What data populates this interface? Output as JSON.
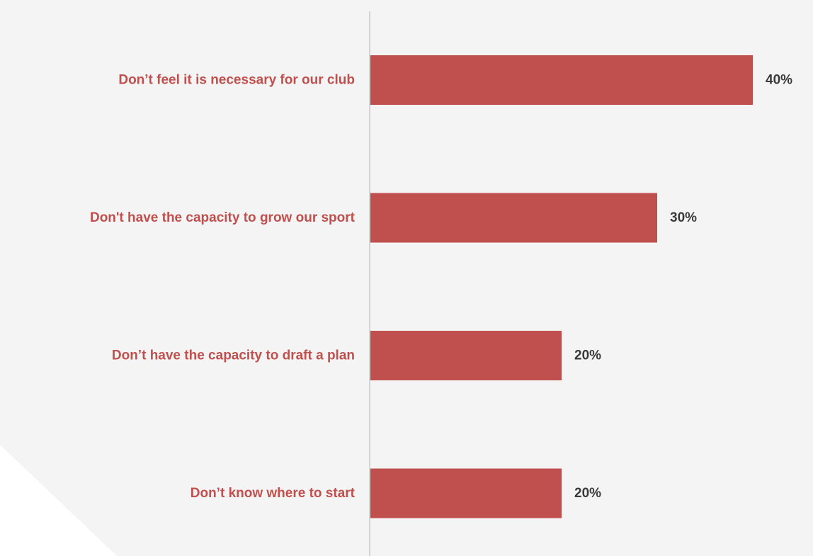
{
  "chart_data": {
    "type": "bar",
    "orientation": "horizontal",
    "categories": [
      "Don’t feel it is necessary for our club",
      "Don't have the capacity to grow our sport",
      "Don’t have the capacity to draft a plan",
      "Don’t know where to start"
    ],
    "values": [
      40,
      30,
      20,
      20
    ],
    "value_labels": [
      "40%",
      "30%",
      "20%",
      "20%"
    ],
    "unit": "%",
    "xlim": [
      0,
      40
    ],
    "grid": false,
    "legend": "none"
  },
  "colors": {
    "bar": "#c0504d",
    "category_label": "#c0504d",
    "value_label": "#3a3a3a",
    "axis": "#c8c8c8",
    "background": "#f4f4f4",
    "corner_shape": "#ffffff"
  }
}
